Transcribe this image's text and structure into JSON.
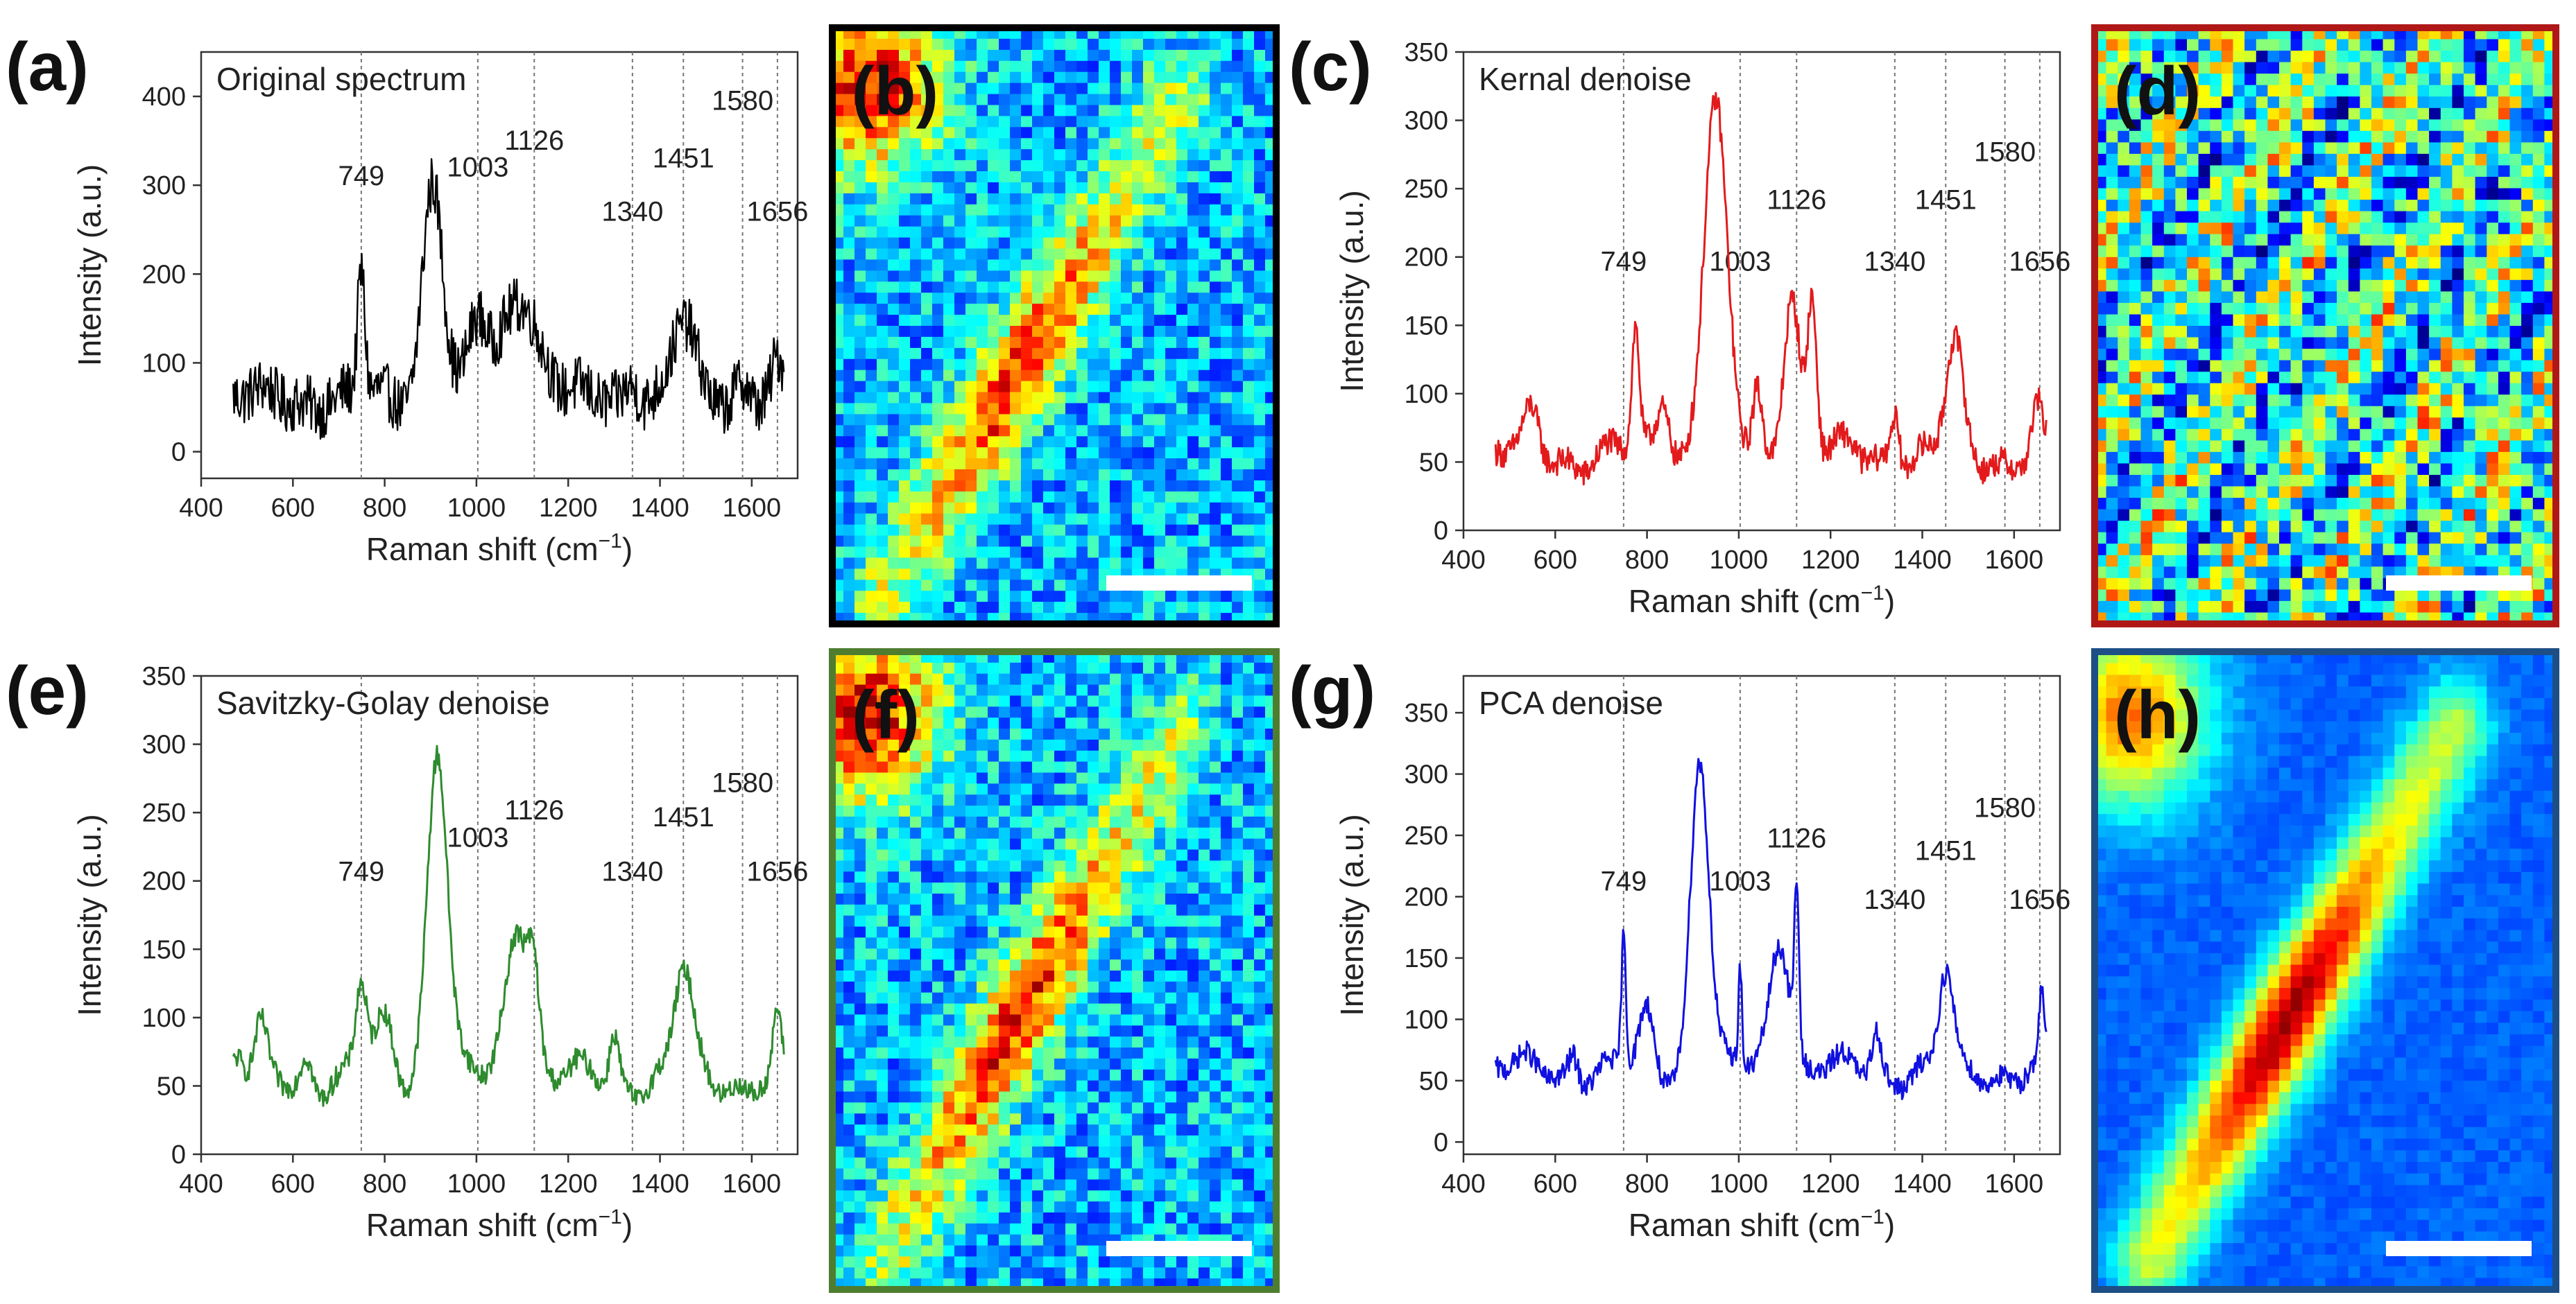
{
  "chart_data": [
    {
      "id": "a",
      "type": "line",
      "panel_label": "(a)",
      "title": "Original spectrum",
      "xlabel": "Raman shift (cm",
      "xlabel_sup": "−1",
      "xlabel_end": ")",
      "ylabel": "Intensity (a.u.)",
      "xlim": [
        400,
        1700
      ],
      "ylim": [
        -30,
        450
      ],
      "xticks": [
        400,
        600,
        800,
        1000,
        1200,
        1400,
        1600
      ],
      "yticks": [
        0,
        100,
        200,
        300,
        400
      ],
      "color": "#000000",
      "noise": 32,
      "baseline": 60,
      "x_range": [
        470,
        1670
      ],
      "peak_lines": [
        749,
        1003,
        1126,
        1340,
        1451,
        1580,
        1656
      ],
      "peaks": [
        {
          "x": 749,
          "y": 140,
          "w": 8
        },
        {
          "x": 905,
          "y": 250,
          "w": 22
        },
        {
          "x": 1003,
          "y": 80,
          "w": 20
        },
        {
          "x": 1095,
          "y": 120,
          "w": 40
        },
        {
          "x": 1340,
          "y": 25,
          "w": 15
        },
        {
          "x": 1451,
          "y": 80,
          "w": 25
        },
        {
          "x": 1580,
          "y": 25,
          "w": 15
        },
        {
          "x": 1656,
          "y": 35,
          "w": 12
        }
      ],
      "peak_labels": [
        {
          "text": "749",
          "x": 749,
          "y": 300
        },
        {
          "text": "1003",
          "x": 1003,
          "y": 310
        },
        {
          "text": "1126",
          "x": 1126,
          "y": 340
        },
        {
          "text": "1340",
          "x": 1340,
          "y": 260
        },
        {
          "text": "1451",
          "x": 1451,
          "y": 320
        },
        {
          "text": "1580",
          "x": 1580,
          "y": 385
        },
        {
          "text": "1656",
          "x": 1656,
          "y": 260
        }
      ]
    },
    {
      "id": "c",
      "type": "line",
      "panel_label": "(c)",
      "title": "Kernal denoise",
      "xlabel": "Raman shift (cm",
      "xlabel_sup": "−1",
      "xlabel_end": ")",
      "ylabel": "Intensity (a.u.)",
      "xlim": [
        400,
        1700
      ],
      "ylim": [
        0,
        350
      ],
      "xticks": [
        400,
        600,
        800,
        1000,
        1200,
        1400,
        1600
      ],
      "yticks": [
        0,
        50,
        100,
        150,
        200,
        250,
        300,
        350
      ],
      "color": "#e31a1c",
      "noise": 10,
      "baseline": 55,
      "x_range": [
        470,
        1670
      ],
      "peak_lines": [
        749,
        1003,
        1126,
        1340,
        1451,
        1580,
        1656
      ],
      "peaks": [
        {
          "x": 550,
          "y": 25,
          "w": 15
        },
        {
          "x": 775,
          "y": 85,
          "w": 8
        },
        {
          "x": 835,
          "y": 45,
          "w": 15
        },
        {
          "x": 948,
          "y": 255,
          "w": 25
        },
        {
          "x": 1040,
          "y": 45,
          "w": 10
        },
        {
          "x": 1115,
          "y": 125,
          "w": 18
        },
        {
          "x": 1160,
          "y": 110,
          "w": 10
        },
        {
          "x": 1340,
          "y": 40,
          "w": 10
        },
        {
          "x": 1470,
          "y": 75,
          "w": 18
        },
        {
          "x": 1650,
          "y": 30,
          "w": 10
        }
      ],
      "peak_labels": [
        {
          "text": "749",
          "x": 749,
          "y": 190
        },
        {
          "text": "1003",
          "x": 1003,
          "y": 190
        },
        {
          "text": "1126",
          "x": 1126,
          "y": 235
        },
        {
          "text": "1340",
          "x": 1340,
          "y": 190
        },
        {
          "text": "1451",
          "x": 1451,
          "y": 235
        },
        {
          "text": "1580",
          "x": 1580,
          "y": 270
        },
        {
          "text": "1656",
          "x": 1656,
          "y": 190
        }
      ]
    },
    {
      "id": "e",
      "type": "line",
      "panel_label": "(e)",
      "title": "Savitzky-Golay denoise",
      "xlabel": "Raman shift (cm",
      "xlabel_sup": "−1",
      "xlabel_end": ")",
      "ylabel": "Intensity (a.u.)",
      "xlim": [
        400,
        1700
      ],
      "ylim": [
        0,
        350
      ],
      "xticks": [
        400,
        600,
        800,
        1000,
        1200,
        1400,
        1600
      ],
      "yticks": [
        0,
        50,
        100,
        150,
        200,
        250,
        300,
        350
      ],
      "color": "#2e8b2e",
      "noise": 8,
      "baseline": 55,
      "x_range": [
        470,
        1670
      ],
      "peak_lines": [
        749,
        1003,
        1126,
        1340,
        1451,
        1580,
        1656
      ],
      "peaks": [
        {
          "x": 480,
          "y": 15,
          "w": 10
        },
        {
          "x": 530,
          "y": 30,
          "w": 12
        },
        {
          "x": 630,
          "y": 20,
          "w": 12
        },
        {
          "x": 749,
          "y": 65,
          "w": 12
        },
        {
          "x": 800,
          "y": 40,
          "w": 20
        },
        {
          "x": 915,
          "y": 245,
          "w": 22
        },
        {
          "x": 1090,
          "y": 120,
          "w": 25
        },
        {
          "x": 1125,
          "y": 60,
          "w": 12
        },
        {
          "x": 1300,
          "y": 35,
          "w": 10
        },
        {
          "x": 1451,
          "y": 75,
          "w": 20
        },
        {
          "x": 1655,
          "y": 40,
          "w": 8
        }
      ],
      "peak_labels": [
        {
          "text": "749",
          "x": 749,
          "y": 200
        },
        {
          "text": "1003",
          "x": 1003,
          "y": 225
        },
        {
          "text": "1126",
          "x": 1126,
          "y": 245
        },
        {
          "text": "1340",
          "x": 1340,
          "y": 200
        },
        {
          "text": "1451",
          "x": 1451,
          "y": 240
        },
        {
          "text": "1580",
          "x": 1580,
          "y": 265
        },
        {
          "text": "1656",
          "x": 1656,
          "y": 200
        }
      ]
    },
    {
      "id": "g",
      "type": "line",
      "panel_label": "(g)",
      "title": "PCA denoise",
      "xlabel": "Raman shift (cm",
      "xlabel_sup": "−1",
      "xlabel_end": ")",
      "ylabel": "Intensity (a.u.)",
      "xlim": [
        400,
        1700
      ],
      "ylim": [
        -10,
        380
      ],
      "xticks": [
        400,
        600,
        800,
        1000,
        1200,
        1400,
        1600
      ],
      "yticks": [
        0,
        50,
        100,
        150,
        200,
        250,
        300,
        350
      ],
      "color": "#1010e0",
      "noise": 9,
      "baseline": 58,
      "x_range": [
        470,
        1670
      ],
      "peak_lines": [
        749,
        1003,
        1126,
        1340,
        1451,
        1580,
        1656
      ],
      "peaks": [
        {
          "x": 640,
          "y": 20,
          "w": 10
        },
        {
          "x": 749,
          "y": 105,
          "w": 5
        },
        {
          "x": 800,
          "y": 45,
          "w": 15
        },
        {
          "x": 915,
          "y": 260,
          "w": 20
        },
        {
          "x": 1003,
          "y": 80,
          "w": 4
        },
        {
          "x": 1090,
          "y": 115,
          "w": 22
        },
        {
          "x": 1126,
          "y": 135,
          "w": 5
        },
        {
          "x": 1300,
          "y": 35,
          "w": 10
        },
        {
          "x": 1451,
          "y": 75,
          "w": 15
        },
        {
          "x": 1660,
          "y": 50,
          "w": 6
        }
      ],
      "peak_labels": [
        {
          "text": "749",
          "x": 749,
          "y": 205
        },
        {
          "text": "1003",
          "x": 1003,
          "y": 205
        },
        {
          "text": "1126",
          "x": 1126,
          "y": 240
        },
        {
          "text": "1340",
          "x": 1340,
          "y": 190
        },
        {
          "text": "1451",
          "x": 1451,
          "y": 230
        },
        {
          "text": "1580",
          "x": 1580,
          "y": 265
        },
        {
          "text": "1656",
          "x": 1656,
          "y": 190
        }
      ]
    }
  ],
  "maps": [
    {
      "id": "b",
      "panel_label": "(b)",
      "border_color": "#000000",
      "pattern": "noisy-diagonal"
    },
    {
      "id": "d",
      "panel_label": "(d)",
      "border_color": "#b01818",
      "pattern": "noise"
    },
    {
      "id": "f",
      "panel_label": "(f)",
      "border_color": "#4e7d2f",
      "pattern": "noisy-diagonal"
    },
    {
      "id": "h",
      "panel_label": "(h)",
      "border_color": "#1d4f86",
      "pattern": "smooth-diagonal"
    }
  ]
}
